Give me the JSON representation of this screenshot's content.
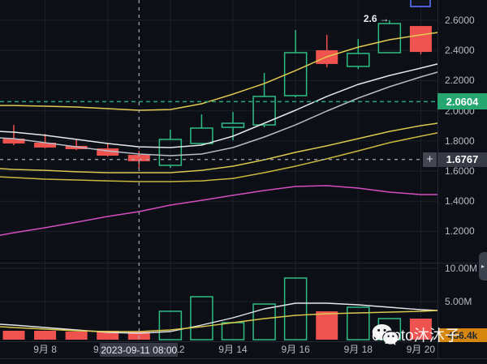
{
  "window": {
    "background": "#0c0f15"
  },
  "colors": {
    "up": "#2ebd85",
    "down": "#ef5350",
    "grid": "#1b202a",
    "axis_text": "#b6bac4",
    "crosshair": "#a6abb5",
    "price_line": "#2aa67b",
    "badge_green_bg": "#26a671",
    "badge_gray_bg": "#363a45",
    "badge_orange_bg": "#d4860f"
  },
  "badges": {
    "price_level": "2.0604",
    "crosshair_price": "1.6767",
    "crosshair_plus": "+",
    "crosshair_date": "2023-09-11 08:00",
    "crosshair_volume": "456.4k"
  },
  "annotation": {
    "text": "2.6",
    "arrow": "→"
  },
  "watermark": {
    "text": "crypto沐沐子"
  },
  "scroll_handle": {
    "arrow": "▸"
  },
  "chart_data": {
    "type": "candlestick",
    "panes": [
      "price",
      "volume"
    ],
    "dates": [
      "2023-09-07",
      "2023-09-08",
      "2023-09-09",
      "2023-09-10",
      "2023-09-11",
      "2023-09-12",
      "2023-09-13",
      "2023-09-14",
      "2023-09-15",
      "2023-09-16",
      "2023-09-17",
      "2023-09-18",
      "2023-09-19",
      "2023-09-20"
    ],
    "candles": [
      {
        "d": "2023-09-07",
        "o": 1.815,
        "h": 1.906,
        "l": 1.772,
        "c": 1.783
      },
      {
        "d": "2023-09-08",
        "o": 1.788,
        "h": 1.847,
        "l": 1.75,
        "c": 1.756
      },
      {
        "d": "2023-09-09",
        "o": 1.767,
        "h": 1.81,
        "l": 1.739,
        "c": 1.745
      },
      {
        "d": "2023-09-10",
        "o": 1.75,
        "h": 1.783,
        "l": 1.696,
        "c": 1.702
      },
      {
        "d": "2023-09-11",
        "o": 1.707,
        "h": 1.734,
        "l": 1.616,
        "c": 1.665
      },
      {
        "d": "2023-09-12",
        "o": 1.638,
        "h": 1.874,
        "l": 1.621,
        "c": 1.81
      },
      {
        "d": "2023-09-13",
        "o": 1.783,
        "h": 1.976,
        "l": 1.772,
        "c": 1.885
      },
      {
        "d": "2023-09-14",
        "o": 1.89,
        "h": 1.992,
        "l": 1.804,
        "c": 1.917
      },
      {
        "d": "2023-09-15",
        "o": 1.906,
        "h": 2.251,
        "l": 1.89,
        "c": 2.095
      },
      {
        "d": "2023-09-16",
        "o": 2.1,
        "h": 2.535,
        "l": 2.089,
        "c": 2.385
      },
      {
        "d": "2023-09-17",
        "o": 2.401,
        "h": 2.503,
        "l": 2.288,
        "c": 2.31
      },
      {
        "d": "2023-09-18",
        "o": 2.294,
        "h": 2.476,
        "l": 2.277,
        "c": 2.38
      },
      {
        "d": "2023-09-19",
        "o": 2.385,
        "h": 2.6,
        "l": 2.38,
        "c": 2.578
      },
      {
        "d": "2023-09-20",
        "o": 2.562,
        "h": 2.562,
        "l": 2.374,
        "c": 2.39
      }
    ],
    "volumes_m": [
      0.61,
      0.61,
      0.49,
      0.61,
      0.456,
      3.54,
      5.73,
      1.83,
      4.63,
      8.54,
      3.54,
      4.15,
      2.44,
      2.44
    ],
    "overlays": [
      {
        "name": "ma-yellow-fast",
        "color": "#e3ca52",
        "values": [
          2.035,
          2.035,
          2.03,
          2.025,
          2.014,
          2.003,
          2.008,
          2.046,
          2.11,
          2.18,
          2.266,
          2.358,
          2.422,
          2.471,
          2.503,
          2.519
        ]
      },
      {
        "name": "ma-white",
        "color": "#e6e7ea",
        "values": [
          1.863,
          1.858,
          1.837,
          1.81,
          1.783,
          1.761,
          1.756,
          1.772,
          1.831,
          1.917,
          2.003,
          2.095,
          2.175,
          2.234,
          2.283,
          2.31
        ]
      },
      {
        "name": "ma-gray",
        "color": "#b9bdc6",
        "values": [
          1.82,
          1.815,
          1.788,
          1.761,
          1.734,
          1.713,
          1.702,
          1.713,
          1.756,
          1.826,
          1.906,
          1.998,
          2.084,
          2.159,
          2.224,
          2.256
        ]
      },
      {
        "name": "ma-yellow-mid",
        "color": "#d9c84e",
        "values": [
          1.616,
          1.611,
          1.605,
          1.595,
          1.589,
          1.589,
          1.589,
          1.605,
          1.632,
          1.675,
          1.724,
          1.767,
          1.815,
          1.863,
          1.901,
          1.917
        ]
      },
      {
        "name": "ma-yellow-slow",
        "color": "#c9b83e",
        "values": [
          1.562,
          1.557,
          1.546,
          1.541,
          1.535,
          1.53,
          1.53,
          1.535,
          1.551,
          1.589,
          1.632,
          1.681,
          1.734,
          1.788,
          1.831,
          1.853
        ]
      },
      {
        "name": "ma-pink",
        "color": "#d54ec0",
        "values": [
          1.175,
          1.191,
          1.224,
          1.261,
          1.299,
          1.331,
          1.374,
          1.406,
          1.439,
          1.471,
          1.498,
          1.503,
          1.487,
          1.46,
          1.444,
          1.444
        ]
      }
    ],
    "volume_overlays": [
      {
        "name": "vol-ma-white",
        "color": "#e6e7ea",
        "values_m": [
          1.59,
          1.46,
          1.1,
          0.73,
          0.37,
          0.24,
          0.49,
          1.46,
          2.56,
          3.9,
          4.76,
          4.76,
          4.51,
          4.15,
          3.78,
          3.66
        ]
      },
      {
        "name": "vol-ma-yellow",
        "color": "#d9c84e",
        "values_m": [
          1.22,
          1.1,
          0.85,
          0.61,
          0.49,
          0.49,
          0.73,
          1.22,
          1.83,
          2.44,
          2.93,
          3.17,
          3.29,
          3.41,
          3.54,
          3.66
        ]
      }
    ],
    "y_axis": {
      "ticks": [
        "2.6000",
        "2.4000",
        "2.2000",
        "2.0000",
        "1.8000",
        "1.6000",
        "1.4000",
        "1.2000"
      ],
      "range": [
        1.13,
        2.73
      ]
    },
    "volume_axis": {
      "ticks": [
        "10.00M",
        "5.00M"
      ]
    },
    "x_axis": {
      "ticks": [
        {
          "label": "9月 8",
          "i": 1
        },
        {
          "label": "9月 10",
          "i": 3
        },
        {
          "label": "9月 12",
          "i": 5
        },
        {
          "label": "9月 14",
          "i": 7
        },
        {
          "label": "9月 16",
          "i": 9
        },
        {
          "label": "9月 18",
          "i": 11
        },
        {
          "label": "9月 20",
          "i": 13
        }
      ]
    },
    "price_line": {
      "value": 2.0604
    },
    "crosshair": {
      "index": 4,
      "price": 1.6767,
      "volume_label": "456.4k"
    },
    "high_marker": {
      "text": "2.6",
      "candle_index": 12
    }
  }
}
